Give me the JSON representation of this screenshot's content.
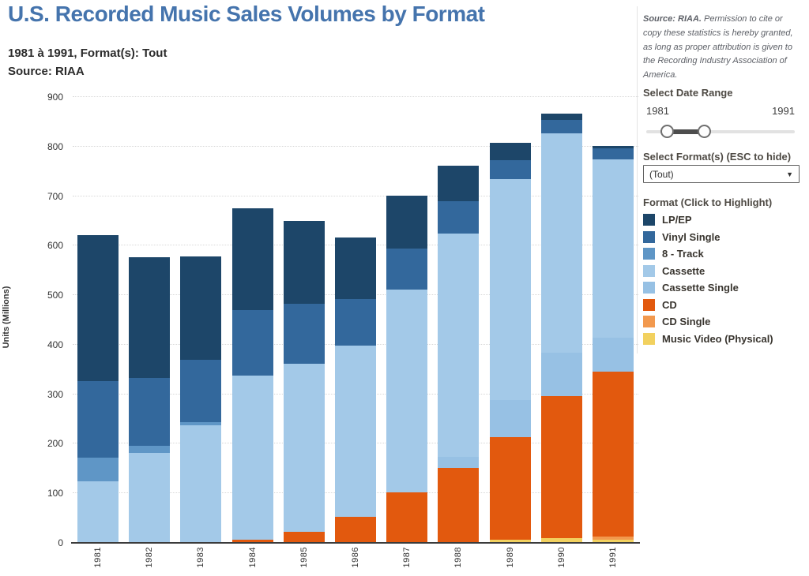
{
  "header": {
    "title": "U.S. Recorded Music Sales Volumes by Format",
    "subtitle": "1981 à 1991, Format(s): Tout",
    "source": "Source: RIAA"
  },
  "source_note": {
    "bold": "Source: RIAA.",
    "text": " Permission to cite or copy these statistics is hereby granted, as long as proper attribution is given to the Recording Industry Association of America."
  },
  "controls": {
    "date_range": {
      "label": "Select Date Range",
      "min": "1981",
      "max": "1991"
    },
    "format_select": {
      "label": "Select Format(s) (ESC to hide)",
      "value": "(Tout)"
    }
  },
  "legend": {
    "title": "Format (Click to Highlight)"
  },
  "chart_data": {
    "type": "bar",
    "stacked": true,
    "title": "U.S. Recorded Music Sales Volumes by Format",
    "xlabel": "",
    "ylabel": "Units (Millions)",
    "ylim": [
      0,
      900
    ],
    "ytick_step": 100,
    "grid": "horizontal dotted gridlines every 100",
    "legend_position": "right",
    "stack_order": "bottom-to-top is reverse of legend order (Music Video at bottom, LP/EP on top)",
    "categories": [
      "1981",
      "1982",
      "1983",
      "1984",
      "1985",
      "1986",
      "1987",
      "1988",
      "1989",
      "1990",
      "1991"
    ],
    "series": [
      {
        "name": "LP/EP",
        "color": "#1d4669",
        "values": [
          295,
          244,
          210,
          205,
          167,
          125,
          107,
          72,
          35,
          12,
          5
        ]
      },
      {
        "name": "Vinyl Single",
        "color": "#33689c",
        "values": [
          155,
          137,
          125,
          132,
          121,
          94,
          82,
          66,
          37,
          28,
          22
        ]
      },
      {
        "name": "8 - Track",
        "color": "#5f96c6",
        "values": [
          48,
          14,
          6,
          0,
          0,
          0,
          0,
          0,
          0,
          0,
          0
        ]
      },
      {
        "name": "Cassette",
        "color": "#a3c9e8",
        "values": [
          124,
          182,
          237,
          332,
          339,
          345,
          410,
          450,
          446,
          442,
          360
        ]
      },
      {
        "name": "Cassette Single",
        "color": "#97c1e4",
        "values": [
          0,
          0,
          0,
          0,
          0,
          0,
          0,
          22,
          76,
          87,
          69
        ]
      },
      {
        "name": "CD",
        "color": "#e2590e",
        "values": [
          0,
          0,
          1,
          6,
          23,
          53,
          102,
          150,
          207,
          287,
          333
        ]
      },
      {
        "name": "CD Single",
        "color": "#f2994e",
        "values": [
          0,
          0,
          0,
          0,
          0,
          0,
          0,
          2,
          0,
          1,
          6
        ]
      },
      {
        "name": "Music Video (Physical)",
        "color": "#f2d15f",
        "values": [
          0,
          0,
          0,
          0,
          0,
          0,
          0,
          0,
          6,
          9,
          6
        ]
      }
    ],
    "totals": [
      622,
      577,
      579,
      675,
      650,
      617,
      701,
      762,
      807,
      866,
      801
    ]
  }
}
